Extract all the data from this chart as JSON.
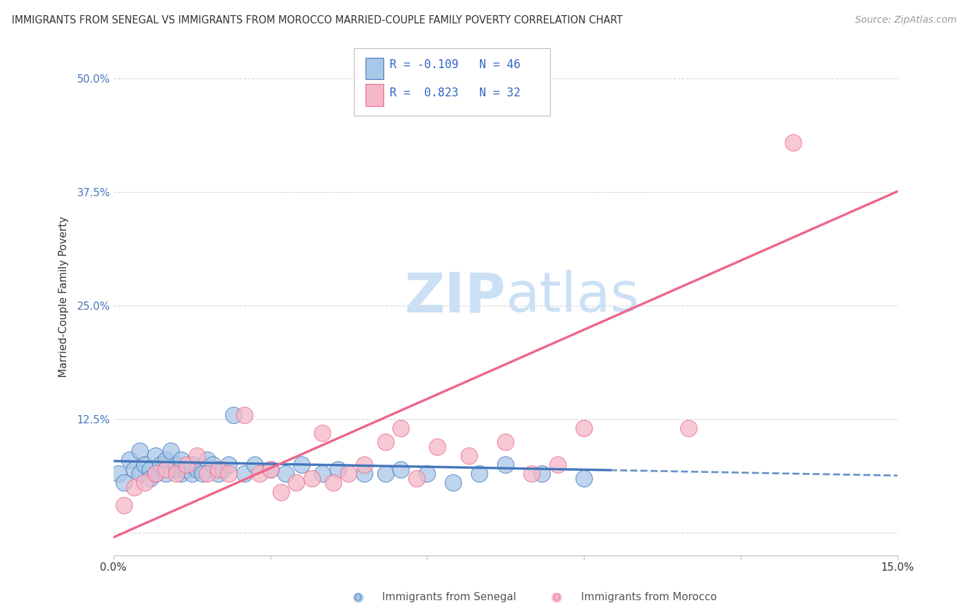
{
  "title": "IMMIGRANTS FROM SENEGAL VS IMMIGRANTS FROM MOROCCO MARRIED-COUPLE FAMILY POVERTY CORRELATION CHART",
  "source": "Source: ZipAtlas.com",
  "ylabel": "Married-Couple Family Poverty",
  "x_min": 0.0,
  "x_max": 0.15,
  "y_min": -0.025,
  "y_max": 0.545,
  "x_ticks": [
    0.0,
    0.03,
    0.06,
    0.09,
    0.12,
    0.15
  ],
  "x_tick_labels": [
    "0.0%",
    "",
    "",
    "",
    "",
    "15.0%"
  ],
  "y_ticks": [
    0.0,
    0.125,
    0.25,
    0.375,
    0.5
  ],
  "y_tick_labels": [
    "",
    "12.5%",
    "25.0%",
    "37.5%",
    "50.0%"
  ],
  "grid_color": "#cccccc",
  "background_color": "#ffffff",
  "senegal_R": "-0.109",
  "senegal_N": "46",
  "morocco_R": "0.823",
  "morocco_N": "32",
  "senegal_color": "#a8c8e8",
  "morocco_color": "#f4b8c8",
  "senegal_line_color": "#4477bb",
  "morocco_line_color": "#ee6688",
  "watermark_zip": "ZIP",
  "watermark_atlas": "atlas",
  "watermark_color_zip": "#cce0f5",
  "watermark_color_atlas": "#cce0f5",
  "senegal_points_x": [
    0.001,
    0.002,
    0.003,
    0.004,
    0.005,
    0.005,
    0.006,
    0.007,
    0.007,
    0.008,
    0.008,
    0.009,
    0.01,
    0.01,
    0.011,
    0.012,
    0.012,
    0.013,
    0.013,
    0.014,
    0.015,
    0.015,
    0.016,
    0.017,
    0.018,
    0.019,
    0.02,
    0.021,
    0.022,
    0.023,
    0.025,
    0.027,
    0.03,
    0.033,
    0.036,
    0.04,
    0.043,
    0.048,
    0.052,
    0.055,
    0.06,
    0.065,
    0.07,
    0.075,
    0.082,
    0.09
  ],
  "senegal_points_y": [
    0.065,
    0.055,
    0.08,
    0.07,
    0.09,
    0.065,
    0.075,
    0.07,
    0.06,
    0.085,
    0.065,
    0.075,
    0.08,
    0.065,
    0.09,
    0.07,
    0.075,
    0.065,
    0.08,
    0.07,
    0.065,
    0.075,
    0.07,
    0.065,
    0.08,
    0.075,
    0.065,
    0.07,
    0.075,
    0.13,
    0.065,
    0.075,
    0.07,
    0.065,
    0.075,
    0.065,
    0.07,
    0.065,
    0.065,
    0.07,
    0.065,
    0.055,
    0.065,
    0.075,
    0.065,
    0.06
  ],
  "morocco_points_x": [
    0.002,
    0.004,
    0.006,
    0.008,
    0.01,
    0.012,
    0.014,
    0.016,
    0.018,
    0.02,
    0.022,
    0.025,
    0.028,
    0.03,
    0.032,
    0.035,
    0.038,
    0.04,
    0.042,
    0.045,
    0.048,
    0.052,
    0.055,
    0.058,
    0.062,
    0.068,
    0.075,
    0.08,
    0.085,
    0.09,
    0.11,
    0.13
  ],
  "morocco_points_y": [
    0.03,
    0.05,
    0.055,
    0.065,
    0.07,
    0.065,
    0.075,
    0.085,
    0.065,
    0.07,
    0.065,
    0.13,
    0.065,
    0.07,
    0.045,
    0.055,
    0.06,
    0.11,
    0.055,
    0.065,
    0.075,
    0.1,
    0.115,
    0.06,
    0.095,
    0.085,
    0.1,
    0.065,
    0.075,
    0.115,
    0.115,
    0.43
  ],
  "sen_line_x0": 0.0,
  "sen_line_x1": 0.095,
  "sen_line_x2": 0.15,
  "sen_line_y0": 0.079,
  "sen_line_y1": 0.069,
  "sen_line_y2": 0.063,
  "mor_line_x0": 0.0,
  "mor_line_x1": 0.15,
  "mor_line_y0": -0.005,
  "mor_line_y1": 0.376
}
